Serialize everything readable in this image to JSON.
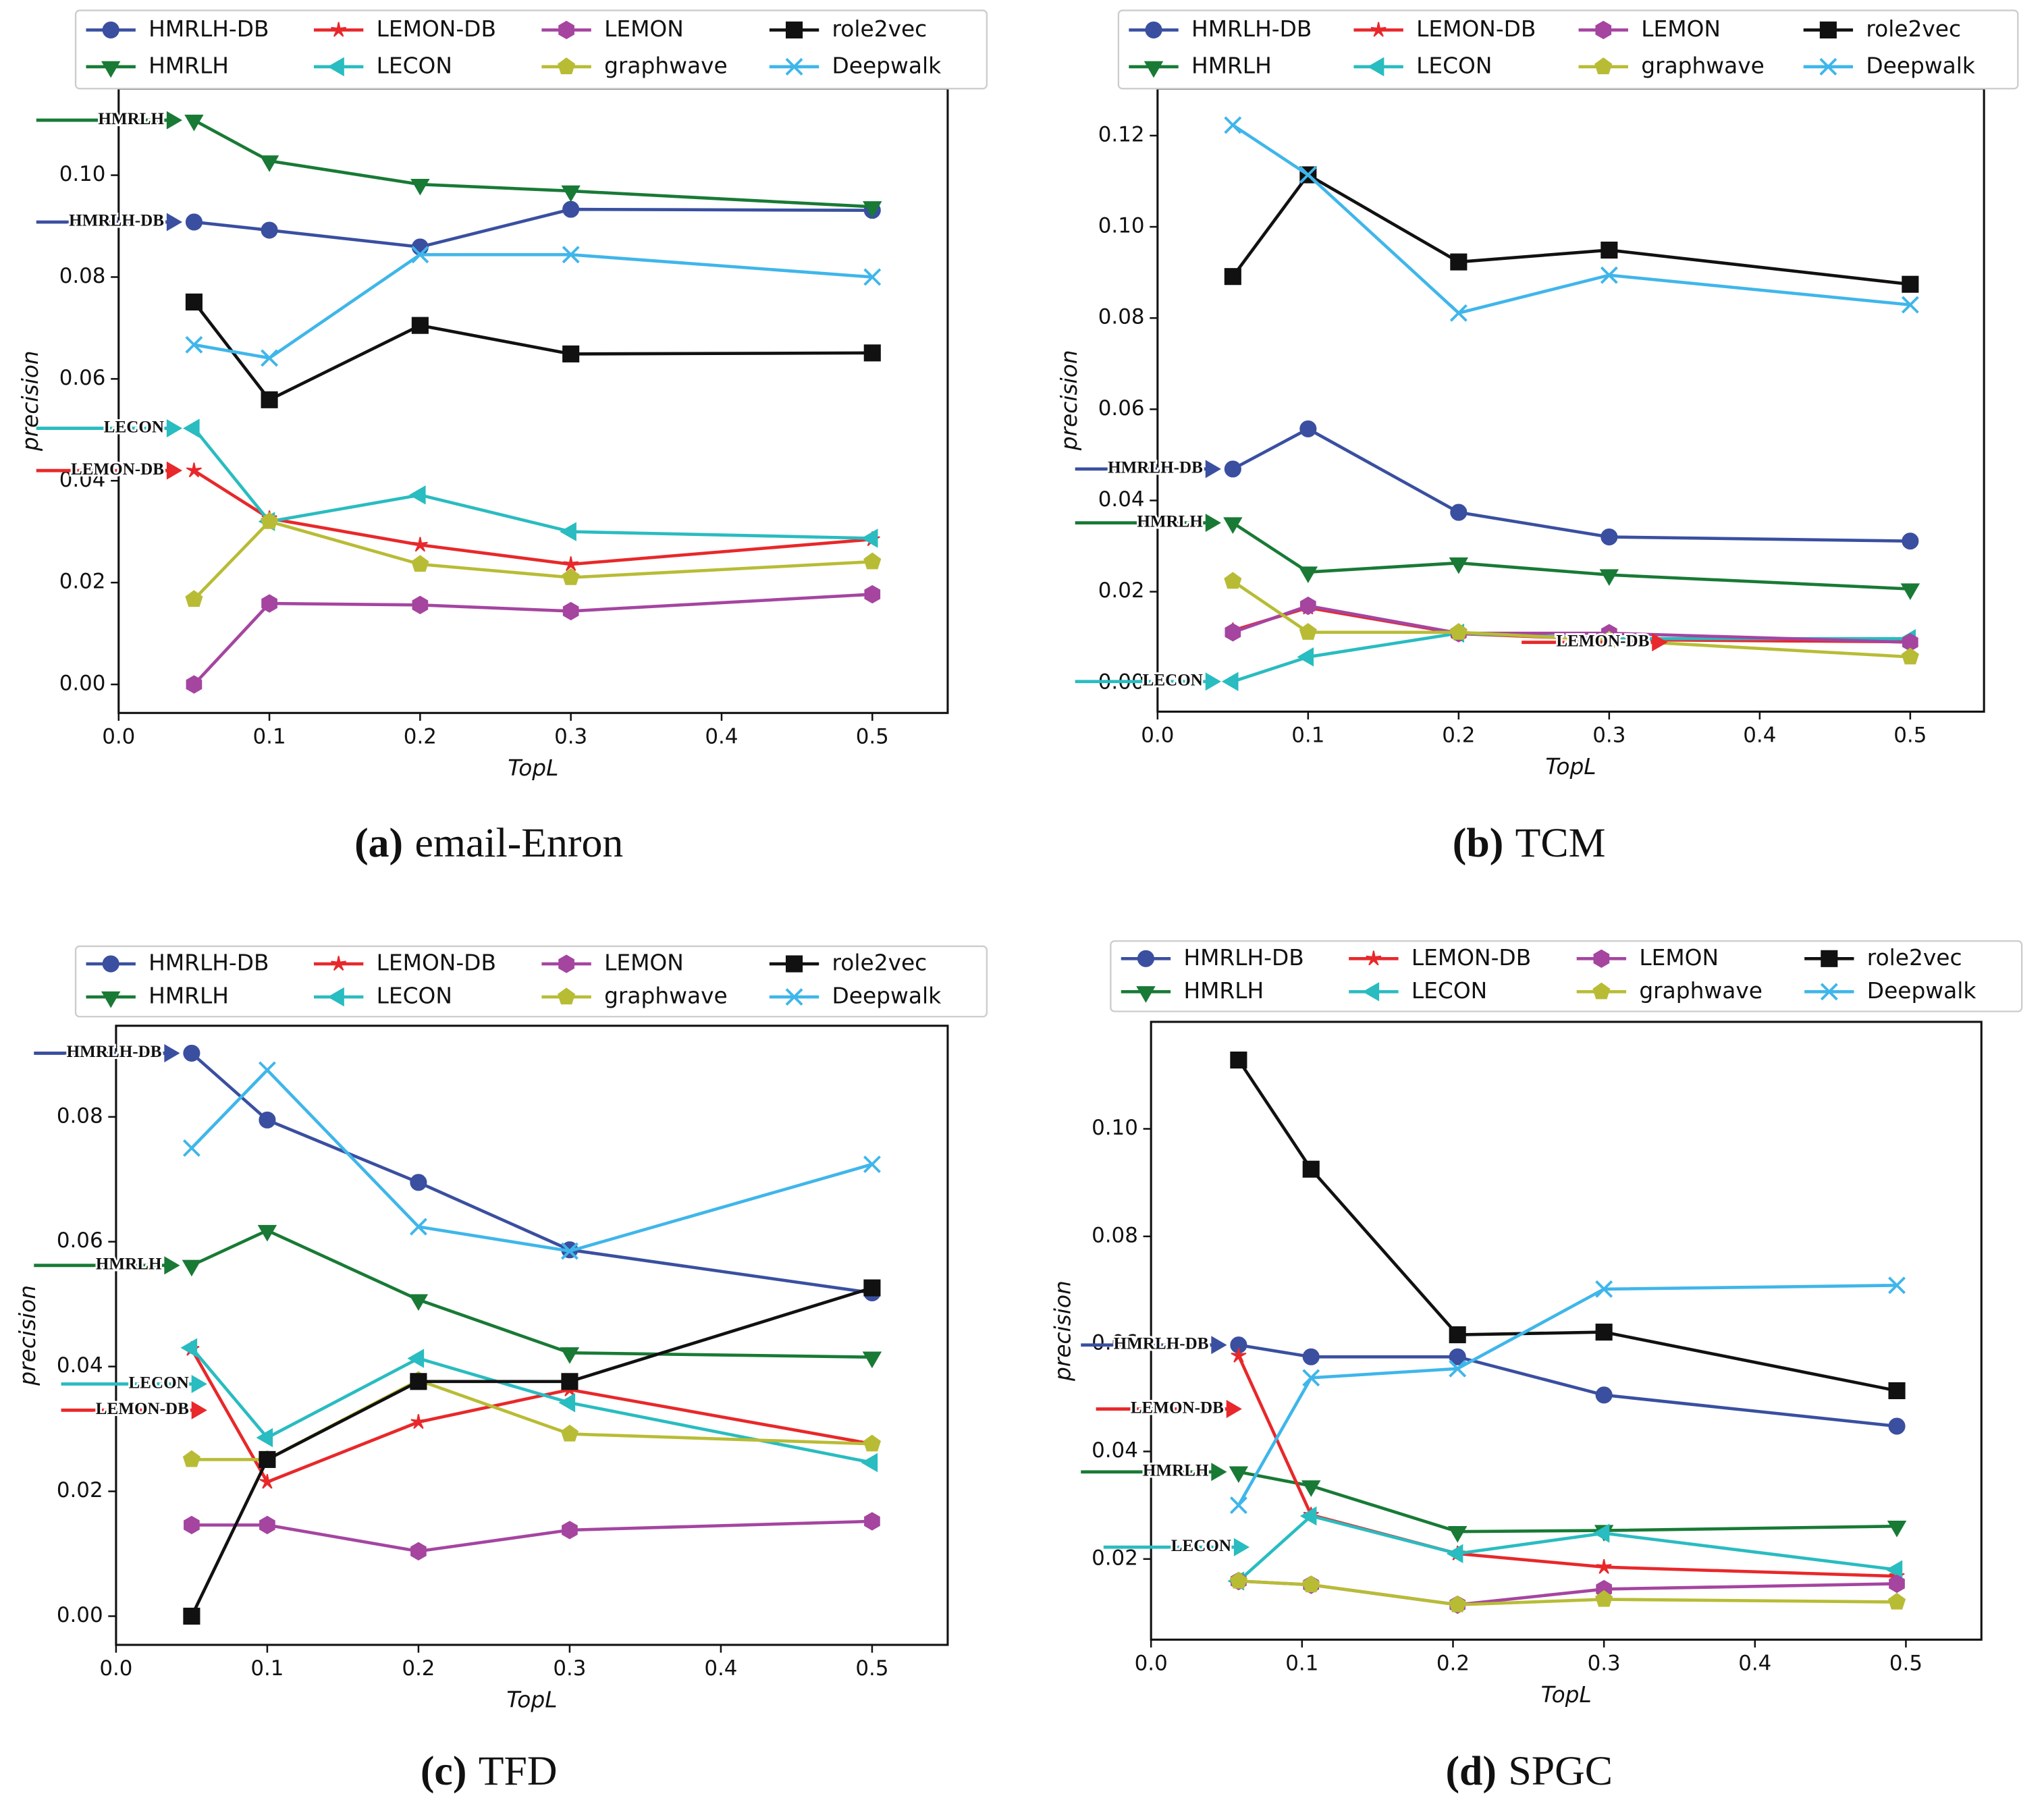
{
  "chart_data": [
    {
      "type": "line",
      "xlabel": "TopL",
      "ylabel": "precision",
      "legend": "upper center",
      "caption_label": "(a)",
      "caption": "email-Enron",
      "x": [
        0.05,
        0.1,
        0.2,
        0.3,
        0.5
      ],
      "xlim": [
        0,
        0.55
      ],
      "ylim": [
        -0.0056,
        0.117
      ],
      "xticks": [
        {
          "value": 0,
          "label": "0.0"
        },
        {
          "value": 0.1,
          "label": "0.1"
        },
        {
          "value": 0.2,
          "label": "0.2"
        },
        {
          "value": 0.3,
          "label": "0.3"
        },
        {
          "value": 0.4,
          "label": "0.4"
        },
        {
          "value": 0.5,
          "label": "0.5"
        }
      ],
      "yticks": [
        {
          "value": 0,
          "label": "0.00"
        },
        {
          "value": 0.02,
          "label": "0.02"
        },
        {
          "value": 0.04,
          "label": "0.04"
        },
        {
          "value": 0.06,
          "label": "0.06"
        },
        {
          "value": 0.08,
          "label": "0.08"
        },
        {
          "value": 0.1,
          "label": "0.10"
        }
      ],
      "series": [
        {
          "name": "HMRLH-DB",
          "color": "#3a4fa0",
          "marker": "o",
          "values": [
            0.0908,
            0.0892,
            0.0859,
            0.0933,
            0.0931
          ]
        },
        {
          "name": "HMRLH",
          "color": "#187a35",
          "marker": "v",
          "values": [
            0.1108,
            0.1028,
            0.0982,
            0.0969,
            0.0938
          ]
        },
        {
          "name": "LEMON-DB",
          "color": "#e8282a",
          "marker": "*",
          "values": [
            0.042,
            0.0326,
            0.0274,
            0.0236,
            0.0285
          ]
        },
        {
          "name": "LECON",
          "color": "#29bcc0",
          "marker": "<",
          "values": [
            0.0503,
            0.032,
            0.0372,
            0.03,
            0.0287
          ]
        },
        {
          "name": "LEMON",
          "color": "#a545a0",
          "marker": "h",
          "values": [
            0.0,
            0.0159,
            0.0156,
            0.0144,
            0.0177
          ]
        },
        {
          "name": "graphwave",
          "color": "#b8bc35",
          "marker": "p",
          "values": [
            0.0167,
            0.032,
            0.0236,
            0.021,
            0.0241
          ]
        },
        {
          "name": "role2vec",
          "color": "#111111",
          "marker": "s",
          "values": [
            0.0751,
            0.0559,
            0.0705,
            0.0649,
            0.0651
          ]
        },
        {
          "name": "Deepwalk",
          "color": "#3fb6ea",
          "marker": "x",
          "values": [
            0.0667,
            0.0641,
            0.0844,
            0.0844,
            0.08
          ]
        }
      ],
      "annotations": [
        {
          "text": "HMRLH",
          "x": 0.05,
          "y": 0.1108,
          "color": "#187a35"
        },
        {
          "text": "HMRLH-DB",
          "x": 0.05,
          "y": 0.0908,
          "color": "#3a4fa0"
        },
        {
          "text": "LECON",
          "x": 0.05,
          "y": 0.0503,
          "color": "#29bcc0"
        },
        {
          "text": "LEMON-DB",
          "x": 0.05,
          "y": 0.042,
          "color": "#e8282a"
        }
      ]
    },
    {
      "type": "line",
      "xlabel": "TopL",
      "ylabel": "precision",
      "legend": "upper center",
      "caption_label": "(b)",
      "caption": "TCM",
      "x": [
        0.05,
        0.1,
        0.2,
        0.3,
        0.5
      ],
      "xlim": [
        0,
        0.549
      ],
      "ylim": [
        -0.0063,
        0.1303
      ],
      "xticks": [
        {
          "value": 0,
          "label": "0.0"
        },
        {
          "value": 0.1,
          "label": "0.1"
        },
        {
          "value": 0.2,
          "label": "0.2"
        },
        {
          "value": 0.3,
          "label": "0.3"
        },
        {
          "value": 0.4,
          "label": "0.4"
        },
        {
          "value": 0.5,
          "label": "0.5"
        }
      ],
      "yticks": [
        {
          "value": 0,
          "label": "0.00"
        },
        {
          "value": 0.02,
          "label": "0.02"
        },
        {
          "value": 0.04,
          "label": "0.04"
        },
        {
          "value": 0.06,
          "label": "0.06"
        },
        {
          "value": 0.08,
          "label": "0.08"
        },
        {
          "value": 0.1,
          "label": "0.10"
        },
        {
          "value": 0.12,
          "label": "0.12"
        }
      ],
      "series": [
        {
          "name": "HMRLH-DB",
          "color": "#3a4fa0",
          "marker": "o",
          "values": [
            0.0469,
            0.0557,
            0.0374,
            0.032,
            0.0311
          ]
        },
        {
          "name": "HMRLH",
          "color": "#187a35",
          "marker": "v",
          "values": [
            0.0351,
            0.0243,
            0.0263,
            0.0237,
            0.0206
          ]
        },
        {
          "name": "LEMON-DB",
          "color": "#e8282a",
          "marker": "*",
          "values": [
            0.0115,
            0.0165,
            0.0108,
            0.0095,
            0.009
          ]
        },
        {
          "name": "LECON",
          "color": "#29bcc0",
          "marker": "<",
          "values": [
            0.0003,
            0.0057,
            0.0109,
            0.0097,
            0.0097
          ]
        },
        {
          "name": "LEMON",
          "color": "#a545a0",
          "marker": "h",
          "values": [
            0.0111,
            0.0169,
            0.0109,
            0.0109,
            0.0089
          ]
        },
        {
          "name": "graphwave",
          "color": "#b8bc35",
          "marker": "p",
          "values": [
            0.0223,
            0.0111,
            0.0111,
            0.0094,
            0.0057
          ]
        },
        {
          "name": "role2vec",
          "color": "#111111",
          "marker": "s",
          "values": [
            0.0891,
            0.1114,
            0.0923,
            0.0949,
            0.0874
          ]
        },
        {
          "name": "Deepwalk",
          "color": "#3fb6ea",
          "marker": "x",
          "values": [
            0.1223,
            0.1114,
            0.0811,
            0.0894,
            0.0829
          ]
        }
      ],
      "annotations": [
        {
          "text": "HMRLH-DB",
          "x": 0.05,
          "y": 0.0469,
          "color": "#3a4fa0"
        },
        {
          "text": "HMRLH",
          "x": 0.05,
          "y": 0.0351,
          "color": "#187a35"
        },
        {
          "text": "LECON",
          "x": 0.05,
          "y": 0.0003,
          "color": "#29bcc0"
        },
        {
          "text": "LEMON-DB",
          "x": 0.3466,
          "y": 0.0089,
          "color": "#e8282a"
        }
      ]
    },
    {
      "type": "line",
      "xlabel": "TopL",
      "ylabel": "precision",
      "legend": "upper center",
      "caption_label": "(c)",
      "caption": "TFD",
      "x": [
        0.05,
        0.1,
        0.2,
        0.3,
        0.5
      ],
      "xlim": [
        0,
        0.55
      ],
      "ylim": [
        -0.0046,
        0.0946
      ],
      "xticks": [
        {
          "value": 0,
          "label": "0.0"
        },
        {
          "value": 0.1,
          "label": "0.1"
        },
        {
          "value": 0.2,
          "label": "0.2"
        },
        {
          "value": 0.3,
          "label": "0.3"
        },
        {
          "value": 0.4,
          "label": "0.4"
        },
        {
          "value": 0.5,
          "label": "0.5"
        }
      ],
      "yticks": [
        {
          "value": 0,
          "label": "0.00"
        },
        {
          "value": 0.02,
          "label": "0.02"
        },
        {
          "value": 0.04,
          "label": "0.04"
        },
        {
          "value": 0.06,
          "label": "0.06"
        },
        {
          "value": 0.08,
          "label": "0.08"
        }
      ],
      "series": [
        {
          "name": "HMRLH-DB",
          "color": "#3a4fa0",
          "marker": "o",
          "values": [
            0.0902,
            0.0795,
            0.0695,
            0.0587,
            0.0518
          ]
        },
        {
          "name": "HMRLH",
          "color": "#187a35",
          "marker": "v",
          "values": [
            0.0562,
            0.0618,
            0.0507,
            0.0422,
            0.0415
          ]
        },
        {
          "name": "LEMON-DB",
          "color": "#e8282a",
          "marker": "*",
          "values": [
            0.0428,
            0.0215,
            0.0311,
            0.0363,
            0.0276
          ]
        },
        {
          "name": "LECON",
          "color": "#29bcc0",
          "marker": "<",
          "values": [
            0.043,
            0.0286,
            0.0413,
            0.0342,
            0.0246
          ]
        },
        {
          "name": "LEMON",
          "color": "#a545a0",
          "marker": "h",
          "values": [
            0.0146,
            0.0146,
            0.0104,
            0.0138,
            0.0152
          ]
        },
        {
          "name": "graphwave",
          "color": "#b8bc35",
          "marker": "p",
          "values": [
            0.0251,
            0.0251,
            0.0378,
            0.0292,
            0.0276
          ]
        },
        {
          "name": "role2vec",
          "color": "#111111",
          "marker": "s",
          "values": [
            0.0,
            0.0251,
            0.0376,
            0.0376,
            0.0526
          ]
        },
        {
          "name": "Deepwalk",
          "color": "#3fb6ea",
          "marker": "x",
          "values": [
            0.075,
            0.0875,
            0.0624,
            0.0585,
            0.0724
          ]
        }
      ],
      "annotations": [
        {
          "text": "HMRLH-DB",
          "x": 0.05,
          "y": 0.0902,
          "color": "#3a4fa0"
        },
        {
          "text": "HMRLH",
          "x": 0.05,
          "y": 0.0562,
          "color": "#187a35"
        },
        {
          "text": "LECON",
          "x": 0.068,
          "y": 0.0372,
          "color": "#29bcc0"
        },
        {
          "text": "LEMON-DB",
          "x": 0.068,
          "y": 0.033,
          "color": "#e8282a"
        }
      ]
    },
    {
      "type": "line",
      "xlabel": "TopL",
      "ylabel": "precision",
      "legend": "upper center",
      "caption_label": "(d)",
      "caption": "SPGC",
      "x": [
        0.058,
        0.106,
        0.203,
        0.3,
        0.494
      ],
      "xlim": [
        0,
        0.55
      ],
      "ylim": [
        0.005,
        0.1199
      ],
      "xticks": [
        {
          "value": 0,
          "label": "0.0"
        },
        {
          "value": 0.1,
          "label": "0.1"
        },
        {
          "value": 0.2,
          "label": "0.2"
        },
        {
          "value": 0.3,
          "label": "0.3"
        },
        {
          "value": 0.4,
          "label": "0.4"
        },
        {
          "value": 0.5,
          "label": "0.5"
        }
      ],
      "yticks": [
        {
          "value": 0.02,
          "label": "0.02"
        },
        {
          "value": 0.04,
          "label": "0.04"
        },
        {
          "value": 0.06,
          "label": "0.06"
        },
        {
          "value": 0.08,
          "label": "0.08"
        },
        {
          "value": 0.1,
          "label": "0.10"
        }
      ],
      "series": [
        {
          "name": "HMRLH-DB",
          "color": "#3a4fa0",
          "marker": "o",
          "values": [
            0.0598,
            0.0576,
            0.0576,
            0.0505,
            0.0447
          ]
        },
        {
          "name": "HMRLH",
          "color": "#187a35",
          "marker": "v",
          "values": [
            0.0362,
            0.0336,
            0.0251,
            0.0253,
            0.0261
          ]
        },
        {
          "name": "LEMON-DB",
          "color": "#e8282a",
          "marker": "*",
          "values": [
            0.0578,
            0.0282,
            0.021,
            0.0185,
            0.0168
          ]
        },
        {
          "name": "LECON",
          "color": "#29bcc0",
          "marker": "<",
          "values": [
            0.0159,
            0.028,
            0.021,
            0.0248,
            0.018
          ]
        },
        {
          "name": "LEMON",
          "color": "#a545a0",
          "marker": "h",
          "values": [
            0.0159,
            0.0152,
            0.0115,
            0.0144,
            0.0154
          ]
        },
        {
          "name": "graphwave",
          "color": "#b8bc35",
          "marker": "p",
          "values": [
            0.0159,
            0.0152,
            0.0115,
            0.0125,
            0.012
          ]
        },
        {
          "name": "role2vec",
          "color": "#111111",
          "marker": "s",
          "values": [
            0.1128,
            0.0925,
            0.0617,
            0.0622,
            0.0513
          ]
        },
        {
          "name": "Deepwalk",
          "color": "#3fb6ea",
          "marker": "x",
          "values": [
            0.03,
            0.0537,
            0.0554,
            0.0702,
            0.0709
          ]
        }
      ],
      "annotations": [
        {
          "text": "HMRLH-DB",
          "x": 0.058,
          "y": 0.0598,
          "color": "#3a4fa0"
        },
        {
          "text": "LEMON-DB",
          "x": 0.068,
          "y": 0.0479,
          "color": "#e8282a"
        },
        {
          "text": "HMRLH",
          "x": 0.058,
          "y": 0.0362,
          "color": "#187a35"
        },
        {
          "text": "LECON",
          "x": 0.073,
          "y": 0.0222,
          "color": "#29bcc0"
        }
      ]
    }
  ]
}
